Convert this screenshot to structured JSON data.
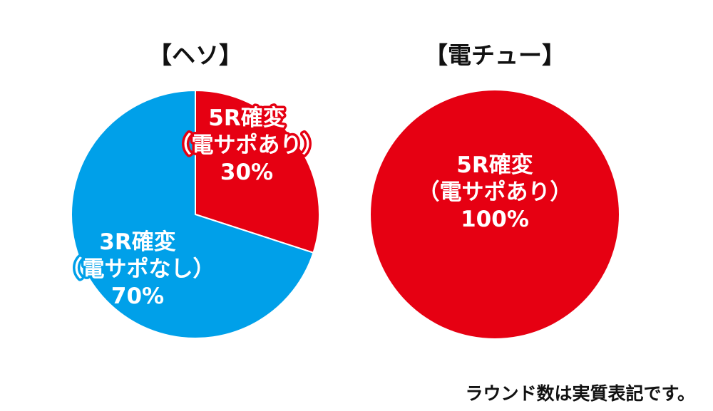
{
  "footnote": "ラウンド数は実質表記です。",
  "colors": {
    "red": "#e60012",
    "blue": "#00a0e9",
    "label_text": "#ffffff"
  },
  "chart_data": [
    {
      "type": "pie",
      "title": "【ヘソ】",
      "slices": [
        {
          "lines": [
            "5R確変",
            "（電サポあり）",
            "30%"
          ],
          "value": 30,
          "color": "#e60012"
        },
        {
          "lines": [
            "3R確変",
            "（電サポなし）",
            "70%"
          ],
          "value": 70,
          "color": "#00a0e9"
        }
      ]
    },
    {
      "type": "pie",
      "title": "【電チュー】",
      "slices": [
        {
          "lines": [
            "5R確変",
            "（電サポあり）",
            "100%"
          ],
          "value": 100,
          "color": "#e60012"
        }
      ]
    }
  ]
}
